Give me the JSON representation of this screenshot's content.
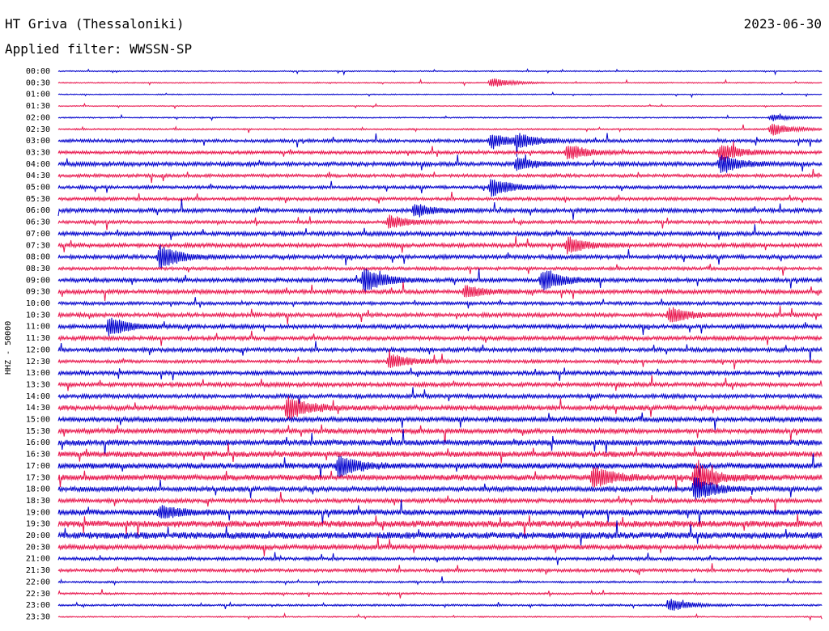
{
  "header": {
    "station": "HT Griva (Thessaloniki)",
    "date": "2023-06-30",
    "filter": "Applied filter: WWSSN-SP"
  },
  "chart_data": {
    "type": "line",
    "title": "HT Griva (Thessaloniki)",
    "subtitle": "Applied filter: WWSSN-SP",
    "date": "2023-06-30",
    "ylabel": "HHZ - 50000",
    "row_labels": [
      "00:00",
      "00:30",
      "01:00",
      "01:30",
      "02:00",
      "02:30",
      "03:00",
      "03:30",
      "04:00",
      "04:30",
      "05:00",
      "05:30",
      "06:00",
      "06:30",
      "07:00",
      "07:30",
      "08:00",
      "08:30",
      "09:00",
      "09:30",
      "10:00",
      "10:30",
      "11:00",
      "11:30",
      "12:00",
      "12:30",
      "13:00",
      "13:30",
      "14:00",
      "14:30",
      "15:00",
      "15:30",
      "16:00",
      "16:30",
      "17:00",
      "17:30",
      "18:00",
      "18:30",
      "19:00",
      "19:30",
      "20:00",
      "20:30",
      "21:00",
      "21:30",
      "22:00",
      "22:30",
      "23:00",
      "23:30"
    ],
    "row_colors": [
      "#0000cc",
      "#e8144c"
    ],
    "noise_level": [
      0.7,
      0.7,
      0.6,
      0.6,
      0.8,
      1.0,
      2.0,
      2.0,
      2.5,
      2.0,
      2.0,
      2.0,
      2.5,
      2.0,
      2.5,
      2.5,
      2.5,
      2.0,
      2.5,
      2.5,
      2.0,
      2.5,
      2.5,
      2.5,
      2.5,
      2.0,
      2.5,
      2.5,
      2.5,
      3.0,
      3.0,
      3.0,
      3.5,
      3.5,
      3.5,
      3.5,
      3.0,
      2.5,
      3.5,
      4.0,
      4.0,
      3.0,
      2.0,
      2.0,
      1.2,
      1.2,
      1.2,
      0.8
    ],
    "events": [
      {
        "row": 1,
        "minute": 17,
        "amp": 6
      },
      {
        "row": 4,
        "minute": 28,
        "amp": 4
      },
      {
        "row": 5,
        "minute": 28,
        "amp": 8
      },
      {
        "row": 6,
        "minute": 17,
        "amp": 10
      },
      {
        "row": 6,
        "minute": 18,
        "amp": 8
      },
      {
        "row": 7,
        "minute": 20,
        "amp": 10
      },
      {
        "row": 7,
        "minute": 26,
        "amp": 12
      },
      {
        "row": 8,
        "minute": 18,
        "amp": 8
      },
      {
        "row": 8,
        "minute": 26,
        "amp": 12
      },
      {
        "row": 10,
        "minute": 17,
        "amp": 12
      },
      {
        "row": 12,
        "minute": 14,
        "amp": 8
      },
      {
        "row": 13,
        "minute": 13,
        "amp": 8
      },
      {
        "row": 15,
        "minute": 20,
        "amp": 10
      },
      {
        "row": 16,
        "minute": 4,
        "amp": 16
      },
      {
        "row": 18,
        "minute": 12,
        "amp": 16
      },
      {
        "row": 18,
        "minute": 19,
        "amp": 14
      },
      {
        "row": 19,
        "minute": 16,
        "amp": 8
      },
      {
        "row": 21,
        "minute": 24,
        "amp": 10
      },
      {
        "row": 22,
        "minute": 2,
        "amp": 12
      },
      {
        "row": 25,
        "minute": 13,
        "amp": 10
      },
      {
        "row": 29,
        "minute": 9,
        "amp": 16
      },
      {
        "row": 34,
        "minute": 11,
        "amp": 14
      },
      {
        "row": 35,
        "minute": 21,
        "amp": 14
      },
      {
        "row": 35,
        "minute": 25,
        "amp": 18
      },
      {
        "row": 36,
        "minute": 25,
        "amp": 14
      },
      {
        "row": 38,
        "minute": 4,
        "amp": 8
      },
      {
        "row": 46,
        "minute": 24,
        "amp": 8
      }
    ],
    "grid": false
  }
}
